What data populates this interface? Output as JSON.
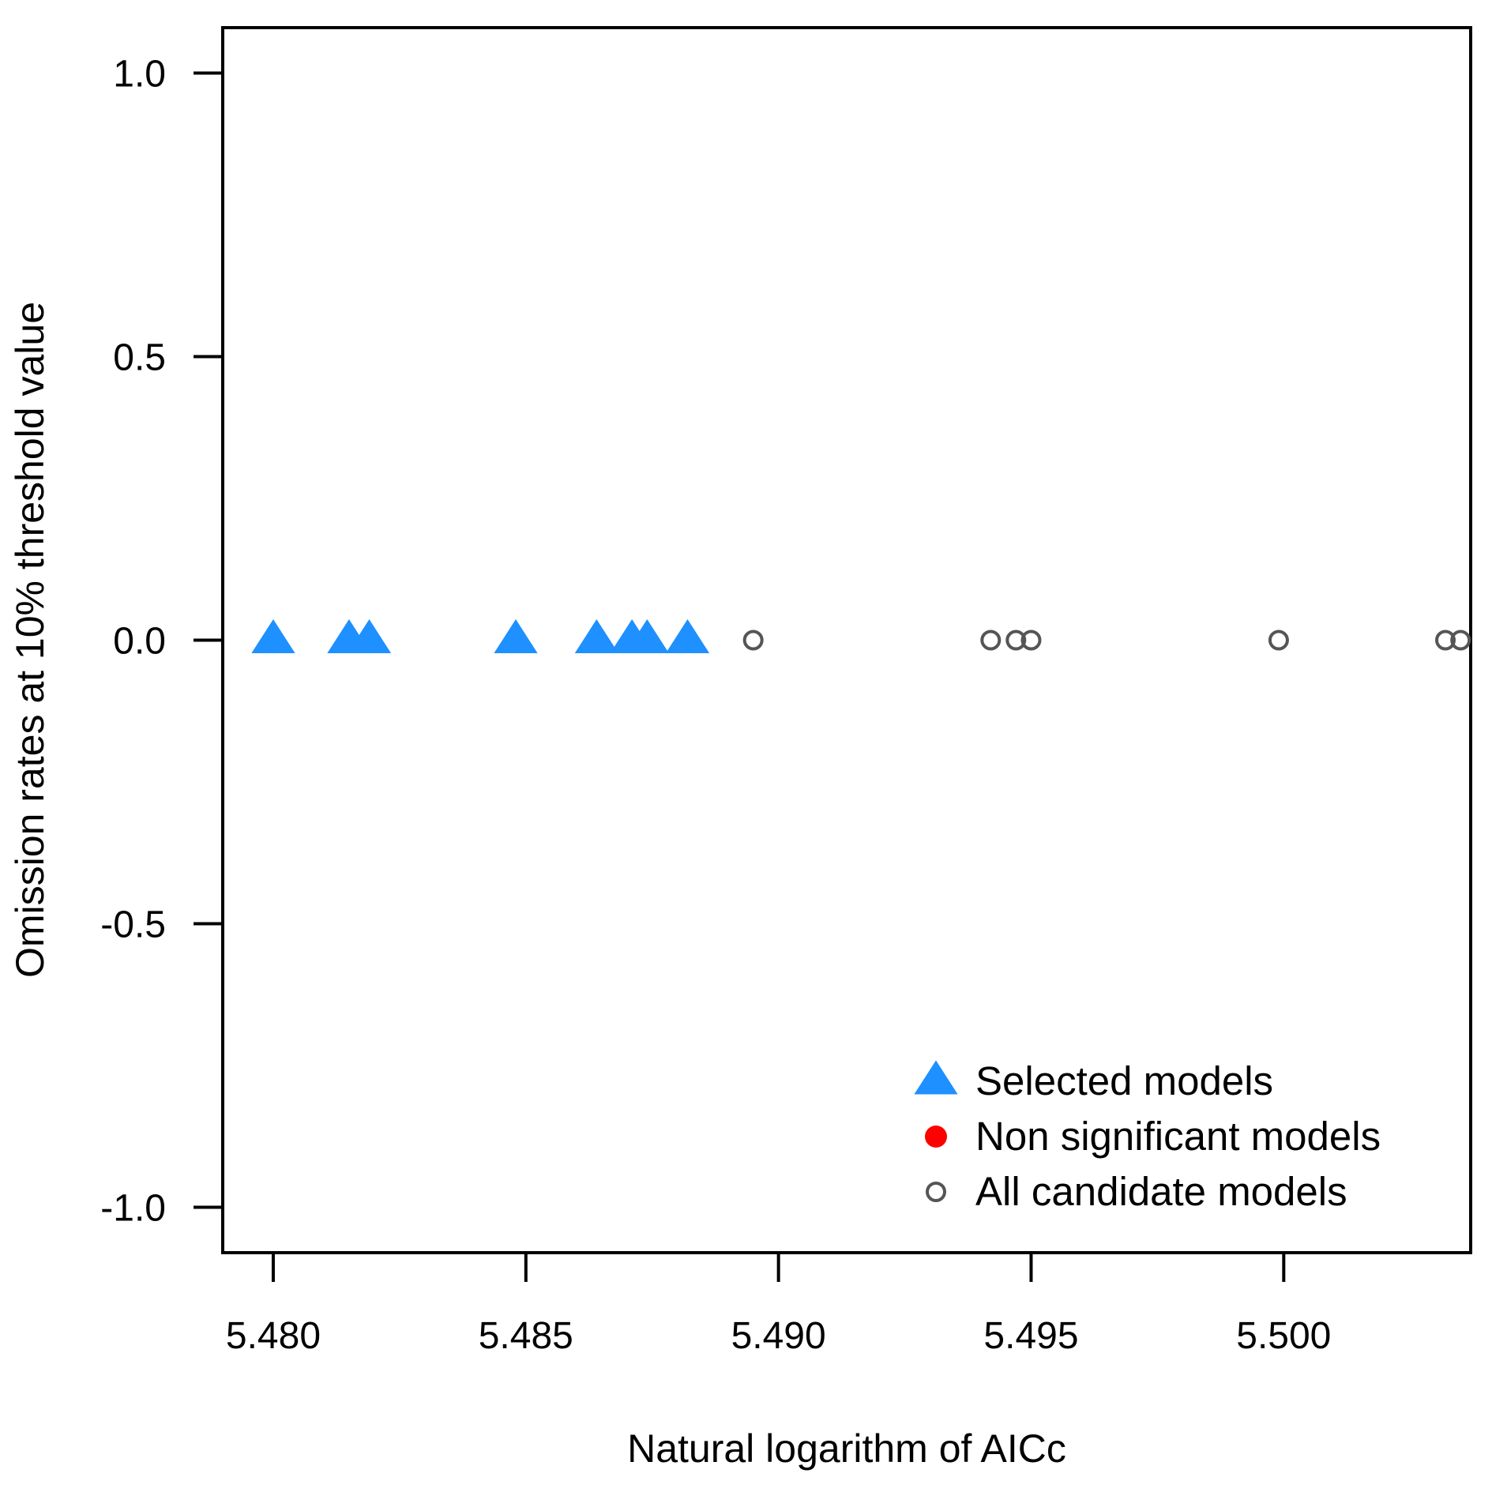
{
  "chart_data": {
    "type": "scatter",
    "title": "",
    "xlabel": "Natural logarithm of AICc",
    "ylabel": "Omission rates at 10% threshold value",
    "xlim": [
      5.479,
      5.5037
    ],
    "ylim": [
      -1.08,
      1.08
    ],
    "x_ticks": [
      5.48,
      5.485,
      5.49,
      5.495,
      5.5
    ],
    "x_tick_labels": [
      "5.480",
      "5.485",
      "5.490",
      "5.495",
      "5.500"
    ],
    "y_ticks": [
      -1.0,
      -0.5,
      0.0,
      0.5,
      1.0
    ],
    "y_tick_labels": [
      "-1.0",
      "-0.5",
      "0.0",
      "0.5",
      "1.0"
    ],
    "grid": false,
    "legend_position": "bottom-right",
    "series": [
      {
        "name": "Selected models",
        "marker": "filled-triangle",
        "color": "#1E90FF",
        "points": [
          {
            "x": 5.48,
            "y": 0.0
          },
          {
            "x": 5.4815,
            "y": 0.0
          },
          {
            "x": 5.4819,
            "y": 0.0
          },
          {
            "x": 5.4848,
            "y": 0.0
          },
          {
            "x": 5.4864,
            "y": 0.0
          },
          {
            "x": 5.4871,
            "y": 0.0
          },
          {
            "x": 5.4874,
            "y": 0.0
          },
          {
            "x": 5.4882,
            "y": 0.0
          }
        ]
      },
      {
        "name": "Non significant models",
        "marker": "filled-circle",
        "color": "#FF0000",
        "points": []
      },
      {
        "name": "All candidate models",
        "marker": "open-circle",
        "color": "#555555",
        "points": [
          {
            "x": 5.4895,
            "y": 0.0
          },
          {
            "x": 5.4942,
            "y": 0.0
          },
          {
            "x": 5.4947,
            "y": 0.0
          },
          {
            "x": 5.495,
            "y": 0.0
          },
          {
            "x": 5.4999,
            "y": 0.0
          },
          {
            "x": 5.5032,
            "y": 0.0
          },
          {
            "x": 5.5035,
            "y": 0.0
          }
        ]
      }
    ]
  }
}
